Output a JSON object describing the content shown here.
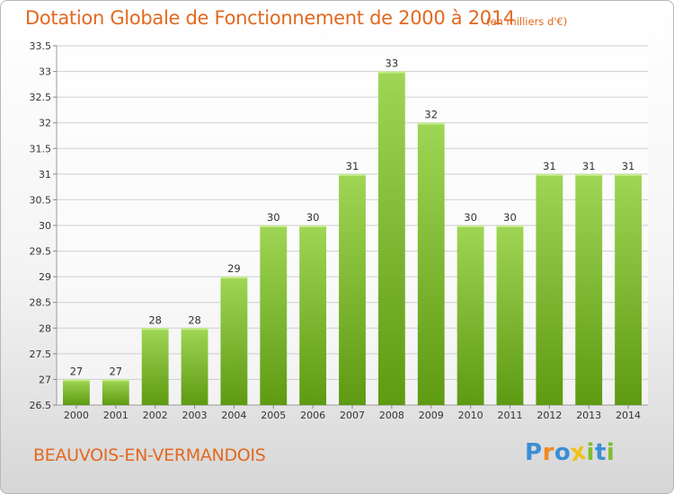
{
  "title": "Dotation Globale de Fonctionnement de 2000 à 2014",
  "unit": "(en milliers d'€)",
  "commune": "BEAUVOIS-EN-VERMANDOIS",
  "logo": {
    "text": "Proxiti",
    "letters": [
      {
        "ch": "P",
        "color": "#3a8fd6"
      },
      {
        "ch": "r",
        "color": "#f08a24"
      },
      {
        "ch": "o",
        "color": "#3a8fd6"
      },
      {
        "ch": "x",
        "color": "#f0c21a"
      },
      {
        "ch": "i",
        "color": "#7fbf2e"
      },
      {
        "ch": "t",
        "color": "#3a8fd6"
      },
      {
        "ch": "i",
        "color": "#7fbf2e"
      }
    ]
  },
  "colors": {
    "title": "#e2691f",
    "bar_top": "#9fd655",
    "bar_bottom": "#5e9a12",
    "grid": "#cfcfcf",
    "axis_text": "#333333"
  },
  "chart_data": {
    "type": "bar",
    "categories": [
      "2000",
      "2001",
      "2002",
      "2003",
      "2004",
      "2005",
      "2006",
      "2007",
      "2008",
      "2009",
      "2010",
      "2011",
      "2012",
      "2013",
      "2014"
    ],
    "values": [
      27,
      27,
      28,
      28,
      29,
      30,
      30,
      31,
      33,
      32,
      30,
      30,
      31,
      31,
      31
    ],
    "data_labels": [
      "27",
      "27",
      "28",
      "28",
      "29",
      "30",
      "30",
      "31",
      "33",
      "32",
      "30",
      "30",
      "31",
      "31",
      "31"
    ],
    "ylim": [
      26.5,
      33.5
    ],
    "yticks": [
      "26.5",
      "27",
      "27.5",
      "28",
      "28.5",
      "29",
      "29.5",
      "30",
      "30.5",
      "31",
      "31.5",
      "32",
      "32.5",
      "33",
      "33.5"
    ],
    "grid": true,
    "xlabel": "",
    "ylabel": ""
  }
}
